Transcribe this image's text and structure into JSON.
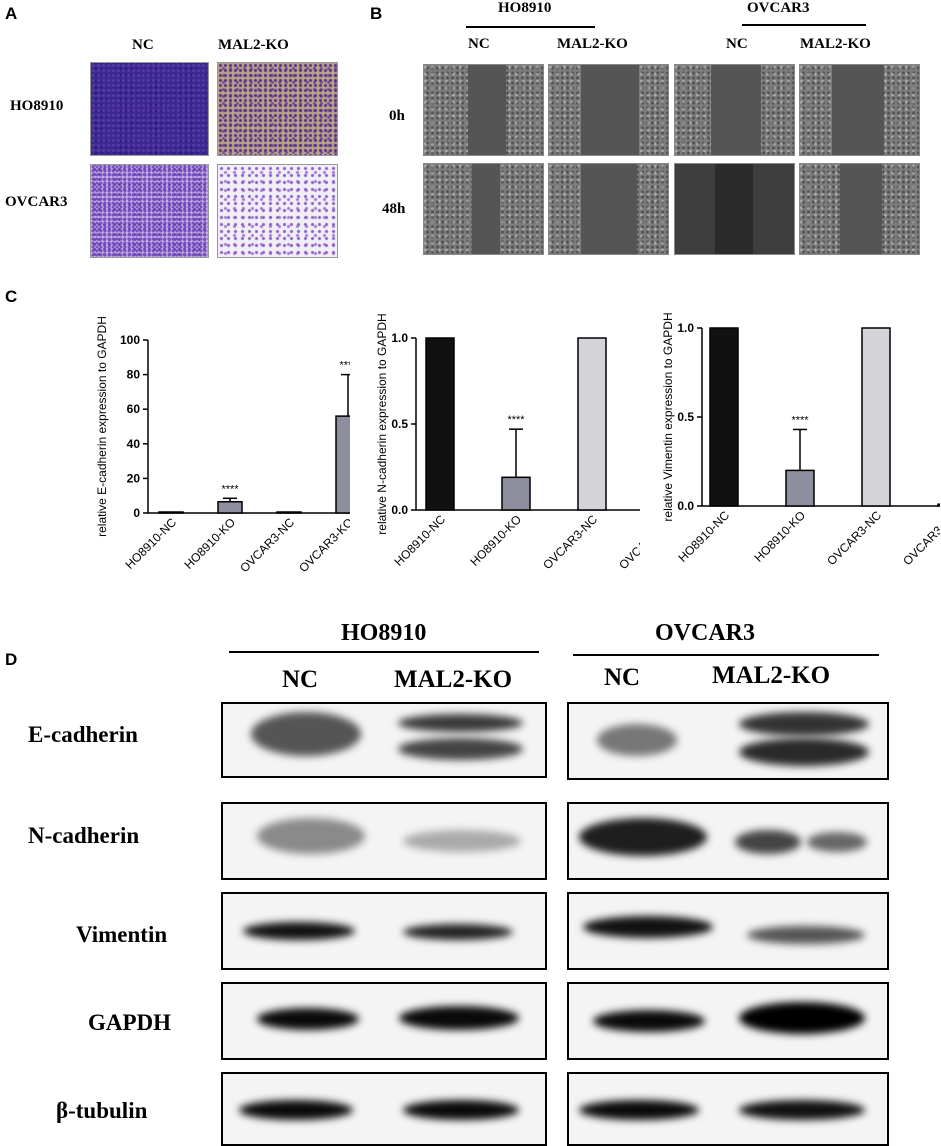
{
  "panelA": {
    "label": "A",
    "col_labels": [
      "NC",
      "MAL2-KO"
    ],
    "row_labels": [
      "HO8910",
      "OVCAR3"
    ]
  },
  "panelB": {
    "label": "B",
    "groups": [
      "HO8910",
      "OVCAR3"
    ],
    "col_labels": [
      "NC",
      "MAL2-KO",
      "NC",
      "MAL2-KO"
    ],
    "row_labels": [
      "0h",
      "48h"
    ]
  },
  "panelC": {
    "label": "C"
  },
  "panelD": {
    "label": "D",
    "groups": [
      "HO8910",
      "OVCAR3"
    ],
    "col_labels": [
      "NC",
      "MAL2-KO",
      "NC",
      "MAL2-KO"
    ],
    "proteins": [
      "E-cadherin",
      "N-cadherin",
      "Vimentin",
      "GAPDH",
      "β-tubulin"
    ]
  },
  "chart_data": [
    {
      "type": "bar",
      "ylabel": "relative E-cadherin expression to GAPDH",
      "categories": [
        "HO8910-NC",
        "HO8910-KO",
        "OVCAR3-NC",
        "OVCAR3-KO"
      ],
      "values": [
        0.5,
        6.5,
        0.5,
        56
      ],
      "errors": [
        0,
        2,
        0,
        24
      ],
      "significance": [
        "",
        "****",
        "",
        "****"
      ],
      "ylim": [
        0,
        100
      ],
      "yticks": [
        "0",
        "20",
        "40",
        "60",
        "80",
        "100"
      ],
      "bar_colors": [
        "#ffffff",
        "#8d8f9e",
        "#ffffff",
        "#8d8f9e"
      ]
    },
    {
      "type": "bar",
      "ylabel": "relative N-cadherin expression to GAPDH",
      "categories": [
        "HO8910-NC",
        "HO8910-KO",
        "OVCAR3-NC",
        "OVCAR3-KO"
      ],
      "values": [
        1.0,
        0.19,
        1.0,
        0.004
      ],
      "errors": [
        0,
        0.28,
        0,
        0.004
      ],
      "significance": [
        "",
        "****",
        "",
        "****"
      ],
      "ylim": [
        0,
        1.0
      ],
      "yticks": [
        "0.0",
        "0.5",
        "1.0"
      ],
      "bar_colors": [
        "#111111",
        "#8d8f9e",
        "#d4d4d8",
        "#8d8f9e"
      ]
    },
    {
      "type": "bar",
      "ylabel": "relative Vimentin expression to GAPDH",
      "categories": [
        "HO8910-NC",
        "HO8910-KO",
        "OVCAR3-NC",
        "OVCAR3-KO"
      ],
      "values": [
        1.0,
        0.2,
        1.0,
        0.01
      ],
      "errors": [
        0,
        0.23,
        0,
        0.015
      ],
      "significance": [
        "",
        "****",
        "",
        "****"
      ],
      "ylim": [
        0,
        1.0
      ],
      "yticks": [
        "0.0",
        "0.5",
        "1.0"
      ],
      "bar_colors": [
        "#111111",
        "#8d8f9e",
        "#d4d4d8",
        "#8d8f9e"
      ]
    }
  ]
}
